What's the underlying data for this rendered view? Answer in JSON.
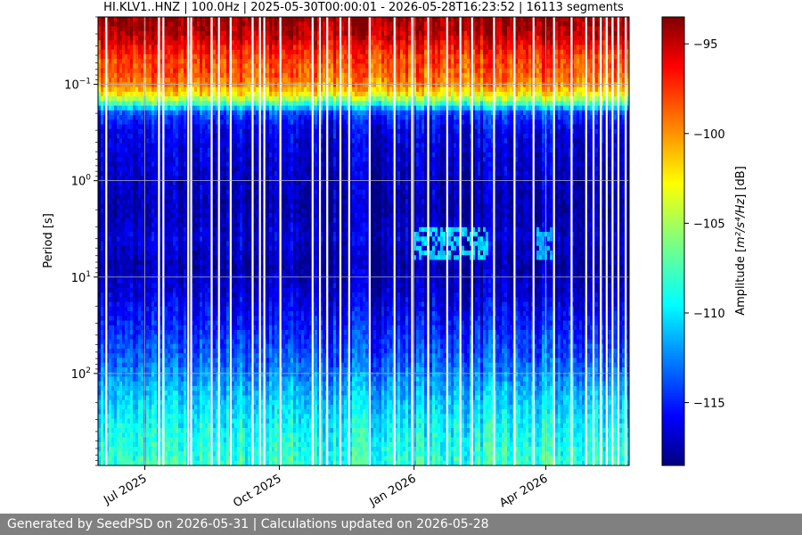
{
  "chart_data": {
    "type": "heatmap",
    "title": "HI.KLV1..HNZ | 100.0Hz | 2025-05-30T00:00:01 - 2026-05-28T16:23:52 | 16113 segments",
    "xlabel": "",
    "ylabel": "Period [s]",
    "y_scale": "log",
    "y_inverted": true,
    "y_range_s": [
      0.02,
      900
    ],
    "y_ticks": [
      {
        "value": 0.1,
        "base": "10",
        "exp": "−1"
      },
      {
        "value": 1,
        "base": "10",
        "exp": "0"
      },
      {
        "value": 10,
        "base": "10",
        "exp": "1"
      },
      {
        "value": 100,
        "base": "10",
        "exp": "2"
      }
    ],
    "x_range": [
      "2025-05-30",
      "2026-05-28"
    ],
    "x_ticks": [
      {
        "date": "2025-07-01",
        "label": "Jul 2025"
      },
      {
        "date": "2025-10-01",
        "label": "Oct 2025"
      },
      {
        "date": "2026-01-01",
        "label": "Jan 2026"
      },
      {
        "date": "2026-04-01",
        "label": "Apr 2026"
      }
    ],
    "grid": true,
    "colorbar": {
      "label_prefix": "Amplitude [",
      "label_math": "m²/s⁴/Hz",
      "label_suffix": "] [dB]",
      "range": [
        -118.5,
        -93.5
      ],
      "ticks": [
        -95,
        -100,
        -105,
        -110,
        -115
      ],
      "tick_labels": [
        "−95",
        "−100",
        "−105",
        "−110",
        "−115"
      ],
      "colormap": "jet"
    },
    "amplitude_profile": {
      "period_s": [
        0.02,
        0.03,
        0.05,
        0.08,
        0.1,
        0.13,
        0.16,
        0.2,
        0.3,
        0.5,
        1,
        2,
        3,
        4,
        5,
        8,
        15,
        30,
        50,
        80,
        150,
        300,
        600,
        900
      ],
      "db": [
        -94,
        -95,
        -98,
        -99,
        -100,
        -103,
        -108,
        -114,
        -116,
        -116.5,
        -117,
        -117.5,
        -117,
        -116.5,
        -117,
        -117.5,
        -116.5,
        -115,
        -114,
        -113,
        -111,
        -109.5,
        -108.5,
        -108
      ]
    },
    "microseism_patches": [
      {
        "start": "2026-01-01",
        "end": "2026-02-20",
        "period_s": [
          3,
          7
        ],
        "db": -110
      },
      {
        "start": "2026-03-25",
        "end": "2026-04-05",
        "period_s": [
          3,
          7
        ],
        "db": -111
      }
    ],
    "data_gaps": [
      "2025-06-04",
      "2025-07-10",
      "2025-07-13",
      "2025-07-30",
      "2025-08-01",
      "2025-08-15",
      "2025-08-20",
      "2025-08-28",
      "2025-09-12",
      "2025-09-17",
      "2025-09-20",
      "2025-10-01",
      "2025-10-23",
      "2025-10-28",
      "2025-11-02",
      "2025-11-11",
      "2025-11-17",
      "2025-12-01",
      "2025-12-18",
      "2025-12-30",
      "2026-01-10",
      "2026-01-23",
      "2026-02-01",
      "2026-02-09",
      "2026-02-24",
      "2026-03-10",
      "2026-03-23",
      "2026-04-06",
      "2026-04-18",
      "2026-04-28",
      "2026-05-03",
      "2026-05-08",
      "2026-05-12",
      "2026-05-16",
      "2026-05-20",
      "2026-05-25"
    ]
  },
  "footer": {
    "text": "Generated by SeedPSD on 2026-05-31 | Calculations updated on 2026-05-28"
  }
}
